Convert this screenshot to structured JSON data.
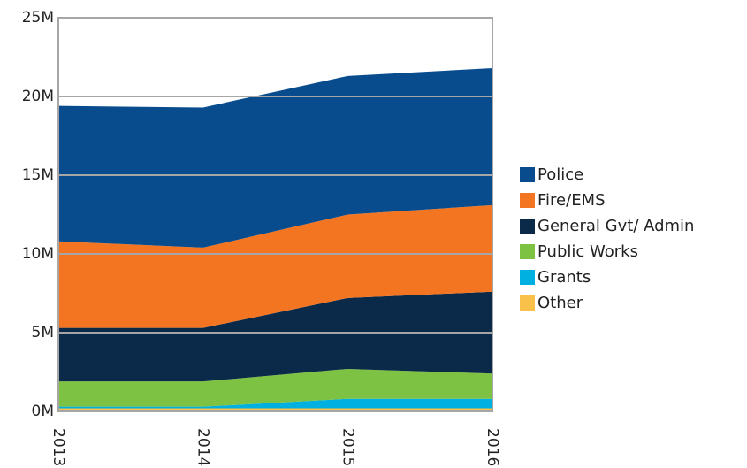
{
  "chart_data": {
    "type": "area",
    "stacked": true,
    "categories": [
      "2013",
      "2014",
      "2015",
      "2016"
    ],
    "y_ticks": [
      "0M",
      "5M",
      "10M",
      "15M",
      "20M",
      "25M"
    ],
    "ylim": [
      0,
      25000000
    ],
    "grid": true,
    "legend_position": "right",
    "series": [
      {
        "name": "Other",
        "color": "#f9c04a",
        "values": [
          200000,
          200000,
          200000,
          200000
        ]
      },
      {
        "name": "Grants",
        "color": "#00b0e0",
        "values": [
          100000,
          100000,
          600000,
          600000
        ]
      },
      {
        "name": "Public Works",
        "color": "#7dc242",
        "values": [
          1600000,
          1600000,
          1900000,
          1600000
        ]
      },
      {
        "name": "General Gvt/ Admin",
        "color": "#0b2a4a",
        "values": [
          3400000,
          3400000,
          4500000,
          5200000
        ]
      },
      {
        "name": "Fire/EMS",
        "color": "#f47521",
        "values": [
          5500000,
          5100000,
          5300000,
          5500000
        ]
      },
      {
        "name": "Police",
        "color": "#084c8d",
        "values": [
          8600000,
          8900000,
          8800000,
          8700000
        ]
      }
    ]
  }
}
